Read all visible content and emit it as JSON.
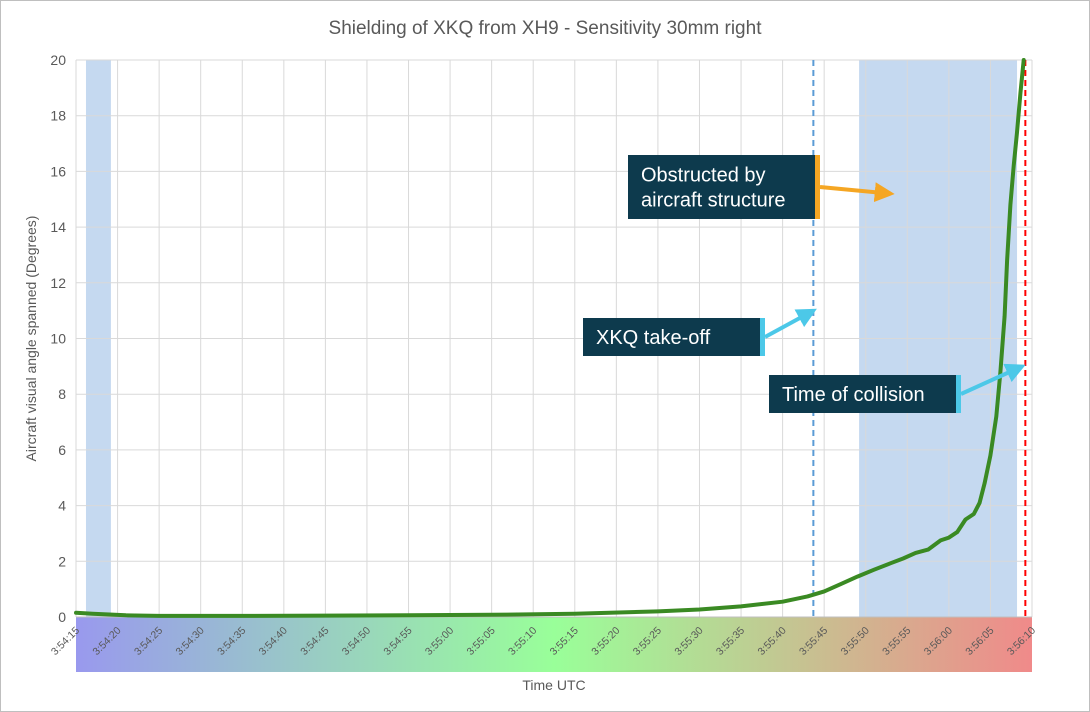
{
  "chart_data": {
    "type": "line",
    "title": "Shielding of XKQ from XH9 - Sensitivity 30mm right",
    "xlabel": "Time UTC",
    "ylabel": "Aircraft visual angle spanned (Degrees)",
    "xlim_seconds": [
      0,
      115
    ],
    "ylim": [
      0,
      20
    ],
    "y_ticks": [
      "0",
      "2",
      "4",
      "6",
      "8",
      "10",
      "12",
      "14",
      "16",
      "18",
      "20"
    ],
    "x_ticks": [
      "3:54:15",
      "3:54:20",
      "3:54:25",
      "3:54:30",
      "3:54:35",
      "3:54:40",
      "3:54:45",
      "3:54:50",
      "3:54:55",
      "3:55:00",
      "3:55:05",
      "3:55:10",
      "3:55:15",
      "3:55:20",
      "3:55:25",
      "3:55:30",
      "3:55:35",
      "3:55:40",
      "3:55:45",
      "3:55:50",
      "3:55:55",
      "3:56:00",
      "3:56:05",
      "3:56:10"
    ],
    "grid": true,
    "series": [
      {
        "color": "#3a8a23",
        "x_seconds": [
          0,
          2,
          4,
          6,
          10,
          20,
          30,
          40,
          50,
          60,
          70,
          75,
          80,
          85,
          88,
          90,
          92,
          94,
          96,
          98,
          99.5,
          101,
          102.5,
          104,
          105,
          106,
          107,
          108,
          108.7,
          109.3,
          110,
          110.7,
          111.2,
          111.7,
          112,
          112.4,
          112.8,
          113.2,
          113.6,
          114
        ],
        "y": [
          0.15,
          0.12,
          0.09,
          0.06,
          0.04,
          0.04,
          0.05,
          0.06,
          0.08,
          0.12,
          0.2,
          0.27,
          0.38,
          0.55,
          0.74,
          0.92,
          1.18,
          1.45,
          1.7,
          1.93,
          2.1,
          2.3,
          2.42,
          2.75,
          2.85,
          3.05,
          3.5,
          3.7,
          4.1,
          4.8,
          5.8,
          7.2,
          8.8,
          10.8,
          12.8,
          14.8,
          16.2,
          17.4,
          18.8,
          20
        ]
      }
    ],
    "shaded_regions_seconds": [
      [
        1.2,
        4.2
      ],
      [
        94.2,
        113.2
      ]
    ],
    "shaded_color": "#c5d9f0",
    "vlines": [
      {
        "x_seconds": 88.7,
        "color": "#5b9bd5",
        "style": "dashed"
      },
      {
        "x_seconds": 114.2,
        "color": "#ff0000",
        "style": "dashed"
      }
    ],
    "gradient_colors": [
      "#9999ee",
      "#99ff99",
      "#f08a8a"
    ],
    "annotations": [
      {
        "lines": [
          "Obstructed by",
          "aircraft structure"
        ],
        "arrow_color": "#f5a623",
        "target": [
          98,
          15.2
        ]
      },
      {
        "lines": [
          "XKQ take-off"
        ],
        "arrow_color": "#4cc8e8",
        "target": [
          88.7,
          11.0
        ]
      },
      {
        "lines": [
          "Time of collision"
        ],
        "arrow_color": "#4cc8e8",
        "target": [
          113.8,
          9.0
        ]
      }
    ]
  }
}
